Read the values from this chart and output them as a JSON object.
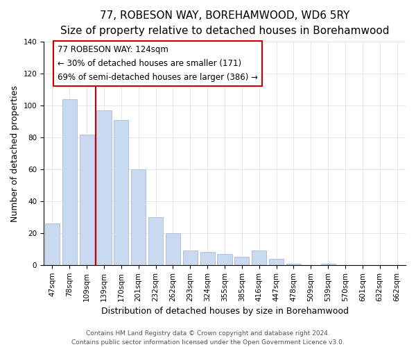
{
  "title": "77, ROBESON WAY, BOREHAMWOOD, WD6 5RY",
  "subtitle": "Size of property relative to detached houses in Borehamwood",
  "xlabel": "Distribution of detached houses by size in Borehamwood",
  "ylabel": "Number of detached properties",
  "categories": [
    "47sqm",
    "78sqm",
    "109sqm",
    "139sqm",
    "170sqm",
    "201sqm",
    "232sqm",
    "262sqm",
    "293sqm",
    "324sqm",
    "355sqm",
    "385sqm",
    "416sqm",
    "447sqm",
    "478sqm",
    "509sqm",
    "539sqm",
    "570sqm",
    "601sqm",
    "632sqm",
    "662sqm"
  ],
  "values": [
    26,
    104,
    82,
    97,
    91,
    60,
    30,
    20,
    9,
    8,
    7,
    5,
    9,
    4,
    1,
    0,
    1,
    0,
    0,
    0,
    0
  ],
  "bar_color": "#c9d9f0",
  "bar_edge_color": "#aabbdd",
  "vline_color": "#cc0000",
  "vline_pos": 2.5,
  "ylim": [
    0,
    140
  ],
  "yticks": [
    0,
    20,
    40,
    60,
    80,
    100,
    120,
    140
  ],
  "annotation_title": "77 ROBESON WAY: 124sqm",
  "annotation_line1": "← 30% of detached houses are smaller (171)",
  "annotation_line2": "69% of semi-detached houses are larger (386) →",
  "annotation_box_color": "#ffffff",
  "annotation_box_edge": "#cc0000",
  "footer_line1": "Contains HM Land Registry data © Crown copyright and database right 2024.",
  "footer_line2": "Contains public sector information licensed under the Open Government Licence v3.0.",
  "title_fontsize": 11,
  "subtitle_fontsize": 9.5,
  "axis_label_fontsize": 9,
  "tick_fontsize": 7.5,
  "annotation_fontsize": 8.5,
  "footer_fontsize": 6.5
}
